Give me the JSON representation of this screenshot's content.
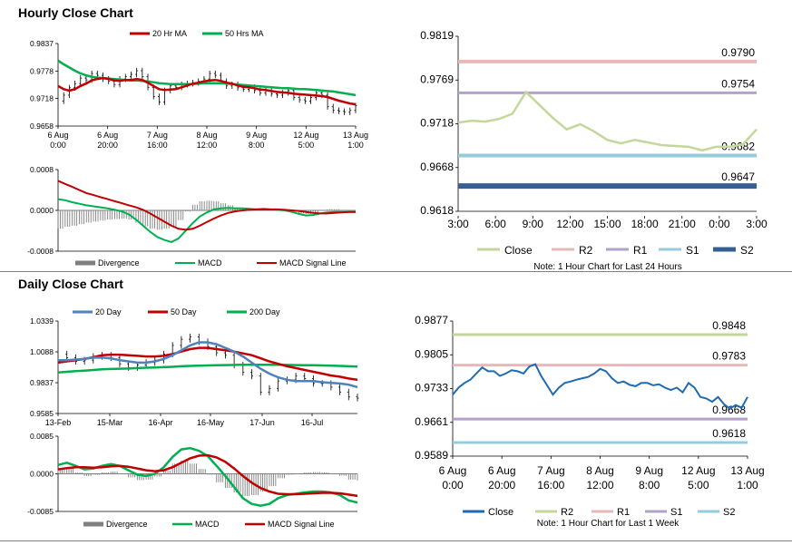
{
  "sections": {
    "hourly_title": "Hourly Close Chart",
    "daily_title": "Daily Close Chart"
  },
  "colors": {
    "ma20": "#c00000",
    "ma50": "#00b050",
    "ma200": "#00b050",
    "ma20_daily": "#4f81bd",
    "macd": "#00b050",
    "signal": "#c00000",
    "divergence": "#7f7f7f",
    "close_light": "#c4d79b",
    "close_blue": "#1f6bb0",
    "r2": "#e6b9b8",
    "r1": "#b3a2c7",
    "s1": "#93cddd",
    "s2": "#366092",
    "d_r2": "#c4d79b",
    "d_r1": "#e6b9b8",
    "d_s1": "#b3a2c7",
    "d_s2": "#93cddd"
  },
  "chart_data": [
    {
      "id": "hourly_price",
      "type": "candlestick",
      "legend": [
        "20 Hr MA",
        "50 Hrs MA"
      ],
      "y_ticks": [
        "0.9837",
        "0.9778",
        "0.9718",
        "0.9658"
      ],
      "ylim": [
        0.9658,
        0.9837
      ],
      "x_ticks": [
        [
          "6 Aug",
          "0:00"
        ],
        [
          "6 Aug",
          "20:00"
        ],
        [
          "7 Aug",
          "16:00"
        ],
        [
          "8 Aug",
          "12:00"
        ],
        [
          "9 Aug",
          "8:00"
        ],
        [
          "12 Aug",
          "5:00"
        ],
        [
          "13 Aug",
          "1:00"
        ]
      ],
      "close": [
        0.9712,
        0.9725,
        0.9741,
        0.975,
        0.9762,
        0.9758,
        0.9772,
        0.9768,
        0.976,
        0.9755,
        0.9748,
        0.976,
        0.9765,
        0.977,
        0.9778,
        0.9765,
        0.9742,
        0.9722,
        0.971,
        0.9735,
        0.9745,
        0.9742,
        0.9748,
        0.975,
        0.9752,
        0.9755,
        0.976,
        0.9772,
        0.9768,
        0.9755,
        0.9745,
        0.9748,
        0.9741,
        0.9738,
        0.9742,
        0.9735,
        0.973,
        0.9735,
        0.9728,
        0.9725,
        0.973,
        0.9735,
        0.972,
        0.9715,
        0.9712,
        0.972,
        0.973,
        0.9725,
        0.97,
        0.9692,
        0.969,
        0.9688,
        0.9692,
        0.9702
      ],
      "ma20": [
        0.9745,
        0.9738,
        0.9735,
        0.9738,
        0.9745,
        0.975,
        0.9757,
        0.976,
        0.9762,
        0.976,
        0.9757,
        0.9756,
        0.9758,
        0.9758,
        0.976,
        0.9758,
        0.9752,
        0.9745,
        0.9738,
        0.9736,
        0.9737,
        0.9738,
        0.9742,
        0.9746,
        0.975,
        0.9752,
        0.9755,
        0.9757,
        0.9758,
        0.9756,
        0.9752,
        0.975,
        0.9746,
        0.9743,
        0.9742,
        0.974,
        0.9737,
        0.9736,
        0.9734,
        0.9732,
        0.9731,
        0.973,
        0.9728,
        0.9727,
        0.9726,
        0.9725,
        0.9724,
        0.9723,
        0.9721,
        0.9717,
        0.9713,
        0.971,
        0.9707,
        0.9705
      ],
      "ma50": [
        0.98,
        0.9792,
        0.9785,
        0.9778,
        0.9772,
        0.9768,
        0.9765,
        0.9763,
        0.9762,
        0.9761,
        0.976,
        0.9759,
        0.9758,
        0.9757,
        0.9757,
        0.9756,
        0.9755,
        0.9753,
        0.9751,
        0.975,
        0.9749,
        0.9749,
        0.9749,
        0.9749,
        0.9749,
        0.975,
        0.9751,
        0.9751,
        0.9751,
        0.9751,
        0.975,
        0.9749,
        0.9748,
        0.9747,
        0.9746,
        0.9745,
        0.9744,
        0.9743,
        0.9742,
        0.9741,
        0.974,
        0.974,
        0.9739,
        0.9738,
        0.9738,
        0.9737,
        0.9736,
        0.9735,
        0.9734,
        0.9733,
        0.9731,
        0.9729,
        0.9727,
        0.9725
      ]
    },
    {
      "id": "hourly_macd",
      "type": "line",
      "legend": [
        "Divergence",
        "MACD",
        "MACD Signal Line"
      ],
      "y_ticks": [
        "0.0008",
        "0.0000",
        "-0.0008"
      ],
      "ylim": [
        -0.0008,
        0.0008
      ],
      "macd": [
        0.00022,
        0.0002,
        0.00016,
        0.00013,
        0.0001,
        8e-05,
        6e-05,
        4e-05,
        1e-05,
        -2e-05,
        -8e-05,
        -0.00018,
        -0.0003,
        -0.00042,
        -0.00052,
        -0.00058,
        -0.00062,
        -0.00055,
        -0.0004,
        -0.00025,
        -0.00012,
        -4e-05,
        2e-05,
        4e-05,
        5e-05,
        4e-05,
        4e-05,
        3e-05,
        2e-05,
        3e-05,
        2e-05,
        1e-05,
        0.0,
        -3e-05,
        -7e-05,
        -0.0001,
        -9e-05,
        -6e-05,
        -4e-05,
        -3e-05,
        -3e-05,
        -3e-05,
        -3e-05
      ],
      "signal": [
        0.00058,
        0.00052,
        0.00046,
        0.0004,
        0.00034,
        0.0003,
        0.00026,
        0.00022,
        0.00018,
        0.00014,
        0.0001,
        6e-05,
        1e-05,
        -6e-05,
        -0.00014,
        -0.00022,
        -0.0003,
        -0.00036,
        -0.00038,
        -0.00036,
        -0.0003,
        -0.00023,
        -0.00016,
        -0.0001,
        -5e-05,
        -2e-05,
        0.0,
        1e-05,
        2e-05,
        2e-05,
        2e-05,
        2e-05,
        1e-05,
        0.0,
        -1e-05,
        -3e-05,
        -5e-05,
        -6e-05,
        -6e-05,
        -5e-05,
        -4e-05,
        -3e-05,
        -3e-05
      ],
      "divergence": [
        -0.00036,
        -0.00032,
        -0.0003,
        -0.00027,
        -0.00024,
        -0.00022,
        -0.0002,
        -0.00018,
        -0.00017,
        -0.00016,
        -0.00018,
        -0.00024,
        -0.00031,
        -0.00036,
        -0.00038,
        -0.00036,
        -0.00032,
        -0.00019,
        -2e-05,
        0.00011,
        0.00018,
        0.00019,
        0.00018,
        0.00014,
        0.0001,
        6e-05,
        4e-05,
        2e-05,
        0.0,
        1e-05,
        0.0,
        -1e-05,
        -1e-05,
        -3e-05,
        -6e-05,
        -7e-05,
        -4e-05,
        0.0,
        2e-05,
        2e-05,
        1e-05,
        0.0,
        0.0
      ]
    },
    {
      "id": "hourly_levels",
      "type": "line",
      "legend": [
        "Close",
        "R2",
        "R1",
        "S1",
        "S2"
      ],
      "y_ticks": [
        "0.9819",
        "0.9769",
        "0.9718",
        "0.9668",
        "0.9618"
      ],
      "ylim": [
        0.9618,
        0.9819
      ],
      "x_ticks": [
        "3:00",
        "6:00",
        "9:00",
        "12:00",
        "15:00",
        "18:00",
        "21:00",
        "0:00",
        "3:00"
      ],
      "close": [
        0.972,
        0.9722,
        0.9721,
        0.9724,
        0.973,
        0.9755,
        0.974,
        0.9725,
        0.9712,
        0.9718,
        0.971,
        0.97,
        0.9696,
        0.97,
        0.9697,
        0.9694,
        0.9693,
        0.9692,
        0.9688,
        0.9692,
        0.9692,
        0.9695,
        0.9712
      ],
      "levels": {
        "R2": 0.979,
        "R1": 0.9754,
        "S1": 0.9682,
        "S2": 0.9647
      },
      "level_labels": [
        "0.9790",
        "0.9754",
        "0.9682",
        "0.9647"
      ],
      "note": "Note: 1 Hour Chart for Last 24 Hours"
    },
    {
      "id": "daily_price",
      "type": "candlestick",
      "legend": [
        "20 Day",
        "50 Day",
        "200 Day"
      ],
      "y_ticks": [
        "1.0339",
        "1.0088",
        "0.9837",
        "0.9585"
      ],
      "ylim": [
        0.9585,
        1.0339
      ],
      "x_ticks": [
        "13-Feb",
        "15-Mar",
        "16-Apr",
        "16-May",
        "17-Jun",
        "16-Jul"
      ],
      "close": [
        1.007,
        1.004,
        1.001,
        1.002,
        1.005,
        1.006,
        1.004,
        0.999,
        0.996,
        0.998,
        1.0,
        1.002,
        1.007,
        1.014,
        1.019,
        1.021,
        1.017,
        1.013,
        1.008,
        1.006,
        0.998,
        0.992,
        0.989,
        0.976,
        0.979,
        0.985,
        0.986,
        0.989,
        0.987,
        0.983,
        0.983,
        0.98,
        0.976,
        0.972,
        0.971
      ],
      "ma20": [
        1.002,
        1.002,
        1.0025,
        1.003,
        1.004,
        1.004,
        1.0035,
        1.002,
        1.001,
        1.0,
        1.0,
        1.001,
        1.003,
        1.006,
        1.01,
        1.014,
        1.0165,
        1.0165,
        1.015,
        1.012,
        1.009,
        1.005,
        1.0,
        0.995,
        0.991,
        0.988,
        0.986,
        0.985,
        0.985,
        0.985,
        0.984,
        0.9835,
        0.983,
        0.982,
        0.98
      ],
      "ma50": [
        1.0,
        1.001,
        1.002,
        1.003,
        1.0045,
        1.006,
        1.0065,
        1.0065,
        1.006,
        1.0055,
        1.005,
        1.005,
        1.0055,
        1.007,
        1.009,
        1.011,
        1.012,
        1.012,
        1.011,
        1.01,
        1.009,
        1.0075,
        1.006,
        1.0035,
        1.001,
        0.999,
        0.997,
        0.9955,
        0.994,
        0.9925,
        0.991,
        0.9895,
        0.9885,
        0.987,
        0.986
      ],
      "ma200": [
        0.992,
        0.9925,
        0.993,
        0.9935,
        0.994,
        0.9945,
        0.9948,
        0.995,
        0.9952,
        0.9955,
        0.9958,
        0.996,
        0.9963,
        0.9966,
        0.997,
        0.9973,
        0.9975,
        0.9977,
        0.9979,
        0.998,
        0.9981,
        0.9982,
        0.9983,
        0.9983,
        0.9983,
        0.9982,
        0.9981,
        0.998,
        0.9979,
        0.9978,
        0.9977,
        0.9975,
        0.9973,
        0.997,
        0.9968
      ]
    },
    {
      "id": "daily_macd",
      "type": "line",
      "legend": [
        "Divergence",
        "MACD",
        "MACD Signal Line"
      ],
      "y_ticks": [
        "0.0085",
        "0.0000",
        "-0.0085"
      ],
      "ylim": [
        -0.0085,
        0.0085
      ],
      "macd": [
        0.002,
        0.0025,
        0.0018,
        0.001,
        0.0012,
        0.0018,
        0.0022,
        0.0018,
        0.0008,
        -0.0002,
        -0.0005,
        0.0,
        0.0015,
        0.0038,
        0.0055,
        0.0058,
        0.0052,
        0.004,
        0.0018,
        -0.0005,
        -0.003,
        -0.0055,
        -0.0068,
        -0.0072,
        -0.0068,
        -0.0055,
        -0.0048,
        -0.0045,
        -0.0042,
        -0.004,
        -0.004,
        -0.0042,
        -0.0048,
        -0.006,
        -0.0065
      ],
      "signal": [
        0.001,
        0.0013,
        0.0015,
        0.0015,
        0.0014,
        0.0015,
        0.0017,
        0.0018,
        0.0016,
        0.0012,
        0.0008,
        0.0006,
        0.0008,
        0.0015,
        0.0025,
        0.0035,
        0.0041,
        0.0042,
        0.0037,
        0.0027,
        0.0012,
        -0.0005,
        -0.002,
        -0.0032,
        -0.004,
        -0.0045,
        -0.0046,
        -0.0046,
        -0.0045,
        -0.0044,
        -0.0043,
        -0.0043,
        -0.0044,
        -0.0047,
        -0.005
      ],
      "divergence": [
        0.001,
        0.0012,
        0.0003,
        -0.0005,
        -0.0002,
        0.0003,
        0.0005,
        0.0,
        -0.0008,
        -0.0014,
        -0.0013,
        -0.0006,
        0.0007,
        0.0023,
        0.003,
        0.0023,
        0.0011,
        -0.0002,
        -0.0019,
        -0.0032,
        -0.0042,
        -0.005,
        -0.0048,
        -0.004,
        -0.0028,
        -0.001,
        -0.0002,
        0.0001,
        0.0003,
        0.0004,
        0.0003,
        0.0001,
        -0.0004,
        -0.0013,
        -0.0015
      ]
    },
    {
      "id": "daily_levels",
      "type": "line",
      "legend": [
        "Close",
        "R2",
        "R1",
        "S1",
        "S2"
      ],
      "y_ticks": [
        "0.9877",
        "0.9805",
        "0.9733",
        "0.9661",
        "0.9589"
      ],
      "ylim": [
        0.9589,
        0.9877
      ],
      "x_ticks": [
        [
          "6 Aug",
          "0:00"
        ],
        [
          "6 Aug",
          "20:00"
        ],
        [
          "7 Aug",
          "16:00"
        ],
        [
          "8 Aug",
          "12:00"
        ],
        [
          "9 Aug",
          "8:00"
        ],
        [
          "12 Aug",
          "5:00"
        ],
        [
          "13 Aug",
          "1:00"
        ]
      ],
      "close": [
        0.972,
        0.9735,
        0.9745,
        0.9752,
        0.9765,
        0.9778,
        0.977,
        0.977,
        0.976,
        0.9765,
        0.9772,
        0.977,
        0.9765,
        0.978,
        0.9785,
        0.976,
        0.974,
        0.972,
        0.9735,
        0.9745,
        0.9748,
        0.9752,
        0.9755,
        0.9758,
        0.9765,
        0.9775,
        0.977,
        0.9755,
        0.9745,
        0.9748,
        0.9741,
        0.9738,
        0.9745,
        0.9745,
        0.974,
        0.9742,
        0.9735,
        0.973,
        0.9735,
        0.9725,
        0.9745,
        0.9735,
        0.9715,
        0.9712,
        0.9705,
        0.9715,
        0.97,
        0.969,
        0.9698,
        0.9692,
        0.9715
      ],
      "levels": {
        "R2": 0.9848,
        "R1": 0.9783,
        "S1": 0.9668,
        "S2": 0.9618
      },
      "level_labels": [
        "0.9848",
        "0.9783",
        "0.9668",
        "0.9618"
      ],
      "note": "Note: 1 Hour Chart for Last 1 Week"
    }
  ]
}
